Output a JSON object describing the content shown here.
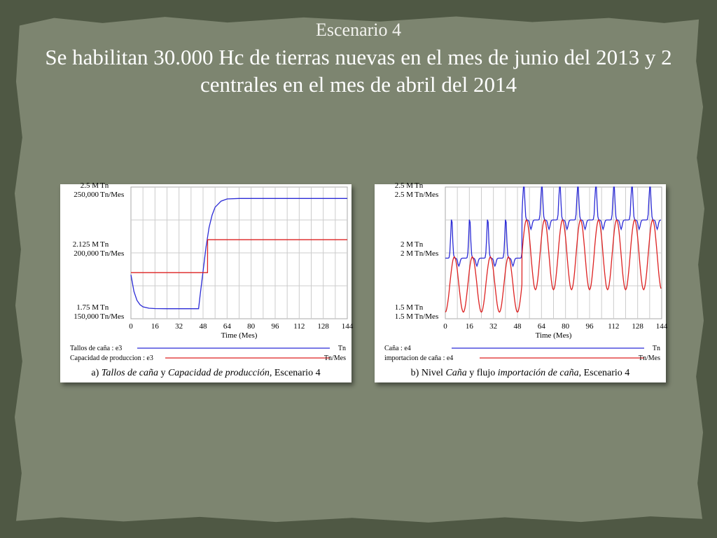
{
  "slide": {
    "subtitle": "Escenario 4",
    "title": "Se habilitan 30.000 Hc de tierras nuevas en el mes de junio del 2013 y 2 centrales en el mes de abril del 2014"
  },
  "chart_data": [
    {
      "type": "line",
      "xlabel": "Time (Mes)",
      "xticks": [
        0,
        16,
        32,
        48,
        64,
        80,
        96,
        112,
        128,
        144
      ],
      "xlim": [
        0,
        144
      ],
      "y_axes": [
        {
          "unit": "Tn",
          "ticks": [
            "1.75 M",
            "2.125 M",
            "2.5 M"
          ],
          "ylim": [
            1750000,
            2500000
          ]
        },
        {
          "unit": "Tn/Mes",
          "ticks": [
            "150,000",
            "200,000",
            "250,000"
          ],
          "ylim": [
            150000,
            250000
          ]
        }
      ],
      "series": [
        {
          "name": "Tallos de caña : e3",
          "unit": "Tn",
          "color": "#2b2bd6",
          "points": [
            [
              0,
              2000000
            ],
            [
              2,
              1905000
            ],
            [
              4,
              1855000
            ],
            [
              6,
              1830000
            ],
            [
              8,
              1818000
            ],
            [
              12,
              1810000
            ],
            [
              16,
              1808000
            ],
            [
              24,
              1807000
            ],
            [
              32,
              1807000
            ],
            [
              40,
              1807000
            ],
            [
              45,
              1807000
            ],
            [
              46,
              1880000
            ],
            [
              48,
              2020000
            ],
            [
              50,
              2160000
            ],
            [
              52,
              2270000
            ],
            [
              54,
              2340000
            ],
            [
              56,
              2385000
            ],
            [
              60,
              2420000
            ],
            [
              64,
              2432000
            ],
            [
              72,
              2435000
            ],
            [
              96,
              2435000
            ],
            [
              144,
              2435000
            ]
          ]
        },
        {
          "name": "Capacidad de produccion : e3",
          "unit": "Tn/Mes",
          "color": "#dd2222",
          "points": [
            [
              0,
              185000
            ],
            [
              51,
              185000
            ],
            [
              51.01,
              210000
            ],
            [
              144,
              210000
            ]
          ]
        }
      ],
      "legend_units": [
        "Tn",
        "Tn/Mes"
      ],
      "caption": {
        "prefix": "a) ",
        "series1": "Tallos de caña",
        "joiner": " y ",
        "series2": "Capacidad de producción",
        "suffix": ", Escenario 4"
      }
    },
    {
      "type": "line",
      "xlabel": "Time (Mes)",
      "xticks": [
        0,
        16,
        32,
        48,
        64,
        80,
        96,
        112,
        128,
        144
      ],
      "xlim": [
        0,
        144
      ],
      "y_axes": [
        {
          "unit": "Tn",
          "ticks": [
            "1.5 M",
            "2 M",
            "2.5 M"
          ],
          "ylim": [
            1500000,
            2500000
          ]
        },
        {
          "unit": "Tn/Mes",
          "ticks": [
            "1.5 M",
            "2 M",
            "2.5 M"
          ],
          "ylim": [
            1500000,
            2500000
          ]
        }
      ],
      "series": [
        {
          "name": "Caña : e4",
          "unit": "Tn",
          "color": "#2b2bd6",
          "pattern": {
            "period": 12,
            "phases": [
              {
                "from": 0,
                "to": 51,
                "base": 1960000,
                "peak": 2270000,
                "trough": 1900000
              },
              {
                "from": 51,
                "to": 144,
                "base": 2250000,
                "peak": 2560000,
                "trough": 2180000
              }
            ]
          }
        },
        {
          "name": "importacion de caña : e4",
          "unit": "Tn/Mes",
          "color": "#dd2222",
          "pattern": {
            "period": 12,
            "phases": [
              {
                "from": 0,
                "to": 51,
                "high": 1970000,
                "low": 1550000
              },
              {
                "from": 51,
                "to": 144,
                "high": 2250000,
                "low": 1720000
              }
            ]
          }
        }
      ],
      "legend_units": [
        "Tn",
        "Tn/Mes"
      ],
      "caption": {
        "prefix": "b) Nivel ",
        "series1": "Caña",
        "joiner": " y flujo ",
        "series2": "importación de caña",
        "suffix": ", Escenario 4"
      }
    }
  ]
}
